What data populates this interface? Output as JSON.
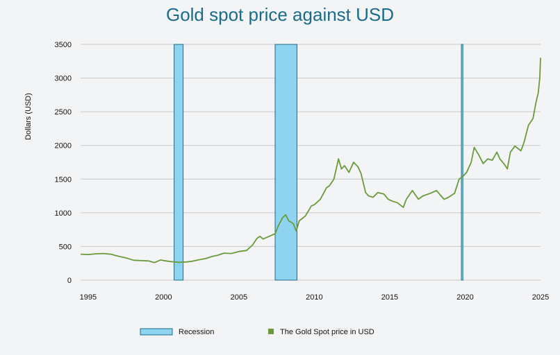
{
  "colors": {
    "title": "#1b6b8a",
    "grid": "#c8c8c8",
    "recession_fill": "#8ed3f0",
    "recession_stroke": "#1b6b8a",
    "gold_line": "#6a9a3a"
  },
  "chart_data": {
    "type": "line",
    "title": "Gold spot price against USD",
    "ylabel": "Dollars (USD)",
    "xlabel": "",
    "xlim": [
      1994.5,
      2025
    ],
    "ylim": [
      0,
      3500
    ],
    "grid": true,
    "legend_position": "bottom",
    "x_ticks": [
      "1995",
      "2000",
      "2005",
      "2010",
      "2015",
      "2020",
      "2025"
    ],
    "y_ticks": [
      "0",
      "500",
      "1000",
      "1500",
      "2000",
      "2500",
      "3000",
      "3500"
    ],
    "legend": {
      "recession": "Recession",
      "gold": "The Gold Spot price in USD"
    },
    "recessions": [
      {
        "start": 2000.7,
        "end": 2001.3
      },
      {
        "start": 2007.4,
        "end": 2008.85
      },
      {
        "start": 2019.75,
        "end": 2019.85
      }
    ],
    "series": [
      {
        "name": "The Gold Spot price in USD",
        "points": [
          [
            1994.5,
            385
          ],
          [
            1995.0,
            380
          ],
          [
            1995.5,
            390
          ],
          [
            1996.0,
            395
          ],
          [
            1996.5,
            385
          ],
          [
            1997.0,
            355
          ],
          [
            1997.5,
            330
          ],
          [
            1998.0,
            295
          ],
          [
            1998.5,
            290
          ],
          [
            1999.0,
            285
          ],
          [
            1999.4,
            260
          ],
          [
            1999.8,
            300
          ],
          [
            2000.0,
            290
          ],
          [
            2000.5,
            275
          ],
          [
            2001.0,
            265
          ],
          [
            2001.5,
            270
          ],
          [
            2001.9,
            280
          ],
          [
            2002.3,
            300
          ],
          [
            2002.8,
            320
          ],
          [
            2003.2,
            350
          ],
          [
            2003.6,
            370
          ],
          [
            2004.0,
            400
          ],
          [
            2004.5,
            395
          ],
          [
            2005.0,
            425
          ],
          [
            2005.5,
            440
          ],
          [
            2005.9,
            520
          ],
          [
            2006.2,
            620
          ],
          [
            2006.4,
            650
          ],
          [
            2006.6,
            610
          ],
          [
            2007.0,
            650
          ],
          [
            2007.4,
            690
          ],
          [
            2007.6,
            800
          ],
          [
            2007.9,
            930
          ],
          [
            2008.1,
            970
          ],
          [
            2008.3,
            880
          ],
          [
            2008.6,
            840
          ],
          [
            2008.8,
            730
          ],
          [
            2009.0,
            880
          ],
          [
            2009.4,
            950
          ],
          [
            2009.8,
            1100
          ],
          [
            2010.0,
            1120
          ],
          [
            2010.4,
            1200
          ],
          [
            2010.8,
            1370
          ],
          [
            2011.0,
            1400
          ],
          [
            2011.3,
            1500
          ],
          [
            2011.6,
            1800
          ],
          [
            2011.8,
            1650
          ],
          [
            2012.0,
            1700
          ],
          [
            2012.3,
            1600
          ],
          [
            2012.6,
            1750
          ],
          [
            2012.9,
            1680
          ],
          [
            2013.1,
            1580
          ],
          [
            2013.4,
            1300
          ],
          [
            2013.6,
            1250
          ],
          [
            2013.9,
            1230
          ],
          [
            2014.2,
            1300
          ],
          [
            2014.6,
            1280
          ],
          [
            2014.9,
            1200
          ],
          [
            2015.2,
            1170
          ],
          [
            2015.5,
            1150
          ],
          [
            2015.9,
            1080
          ],
          [
            2016.1,
            1200
          ],
          [
            2016.5,
            1330
          ],
          [
            2016.9,
            1200
          ],
          [
            2017.2,
            1250
          ],
          [
            2017.7,
            1290
          ],
          [
            2018.1,
            1330
          ],
          [
            2018.6,
            1200
          ],
          [
            2018.9,
            1230
          ],
          [
            2019.3,
            1290
          ],
          [
            2019.6,
            1500
          ],
          [
            2019.9,
            1550
          ],
          [
            2020.1,
            1600
          ],
          [
            2020.4,
            1750
          ],
          [
            2020.6,
            1970
          ],
          [
            2020.9,
            1860
          ],
          [
            2021.2,
            1730
          ],
          [
            2021.5,
            1800
          ],
          [
            2021.8,
            1780
          ],
          [
            2022.1,
            1900
          ],
          [
            2022.3,
            1800
          ],
          [
            2022.6,
            1720
          ],
          [
            2022.8,
            1650
          ],
          [
            2023.0,
            1900
          ],
          [
            2023.3,
            1990
          ],
          [
            2023.7,
            1920
          ],
          [
            2023.9,
            2040
          ],
          [
            2024.2,
            2300
          ],
          [
            2024.5,
            2400
          ],
          [
            2024.7,
            2640
          ],
          [
            2024.85,
            2780
          ],
          [
            2024.95,
            3000
          ],
          [
            2025.0,
            3300
          ]
        ]
      }
    ]
  }
}
